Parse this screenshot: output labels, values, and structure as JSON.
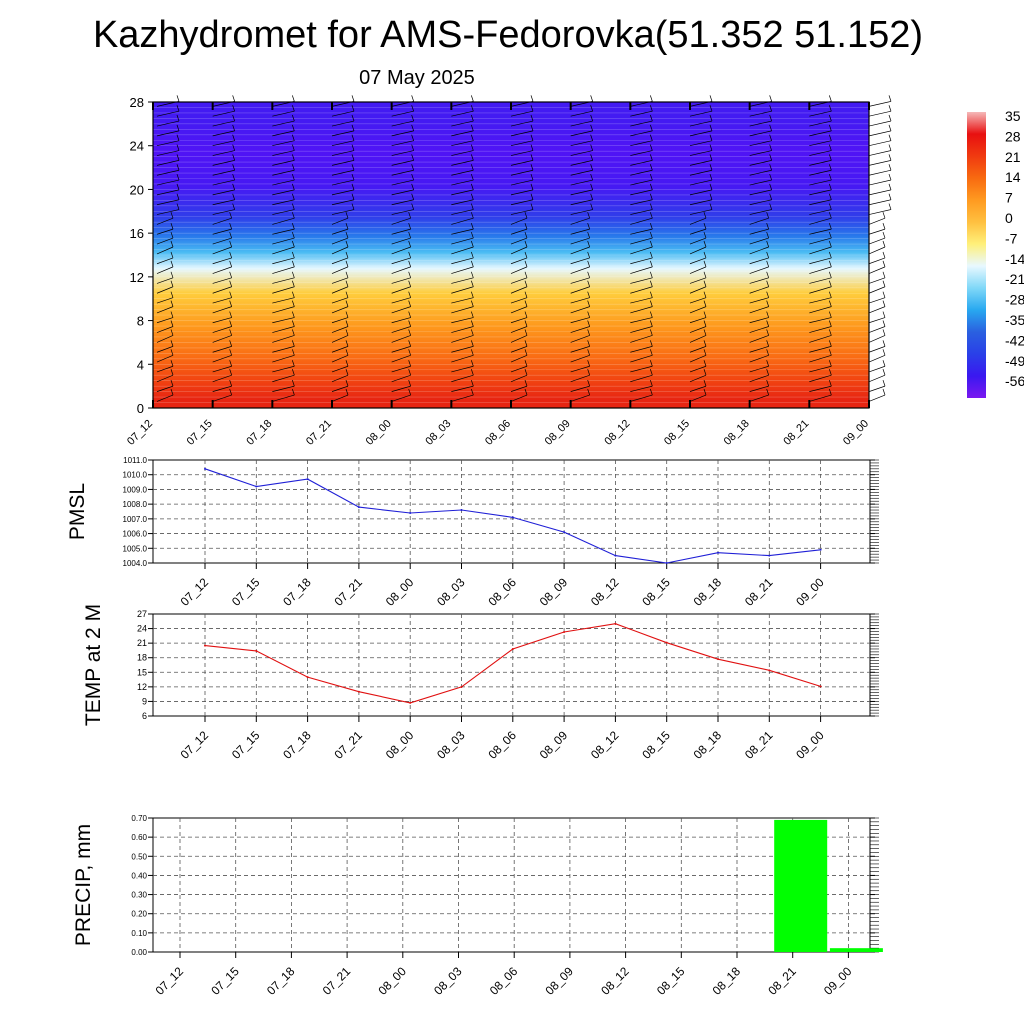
{
  "header": {
    "title": "Kazhydromet for AMS-Fedorovka(51.352 51.152)",
    "subtitle": "07 May 2025"
  },
  "colors": {
    "pmsl_line": "#1f1fd6",
    "temp_line": "#e01010",
    "precip_bar": "#00ff00",
    "grid": "#555555"
  },
  "chart_data": [
    {
      "type": "heatmap",
      "title": "",
      "xlabel": "",
      "ylabel": "",
      "x": [
        "07_12",
        "07_15",
        "07_18",
        "07_21",
        "08_00",
        "08_03",
        "08_06",
        "08_09",
        "08_12",
        "08_15",
        "08_18",
        "08_21",
        "09_00"
      ],
      "y_ticks": [
        0,
        4,
        8,
        12,
        16,
        20,
        24,
        28
      ],
      "ylim": [
        0,
        28
      ],
      "colorbar_labels": [
        "35",
        "28",
        "21",
        "14",
        "7",
        "0",
        "-7",
        "-14",
        "-21",
        "-28",
        "-35",
        "-42",
        "-49",
        "-56"
      ],
      "colorbar_colors": [
        "#f5b8b8",
        "#e81010",
        "#f03a10",
        "#f86a10",
        "#ff9a20",
        "#ffc040",
        "#fff07a",
        "#e8f8ff",
        "#80d8f8",
        "#28a8f0",
        "#2a60e0",
        "#2a40e8",
        "#3a18f0",
        "#7a18f0"
      ],
      "layers": [
        {
          "z": [
            0,
            1.5
          ],
          "value": 25
        },
        {
          "z": [
            1.5,
            3.5
          ],
          "value": 20
        },
        {
          "z": [
            3.5,
            6
          ],
          "value": 14
        },
        {
          "z": [
            6,
            9
          ],
          "value": 8
        },
        {
          "z": [
            9,
            12
          ],
          "value": 0
        },
        {
          "z": [
            12,
            13.5
          ],
          "value": -14
        },
        {
          "z": [
            13.5,
            15
          ],
          "value": -25
        },
        {
          "z": [
            15,
            16.5
          ],
          "value": -35
        },
        {
          "z": [
            16.5,
            18.5
          ],
          "value": -45
        },
        {
          "z": [
            18.5,
            22
          ],
          "value": -53
        },
        {
          "z": [
            22,
            25
          ],
          "value": -56
        },
        {
          "z": [
            25,
            28
          ],
          "value": -52
        }
      ],
      "wind_barbs": true
    },
    {
      "type": "line",
      "ylabel": "PMSL",
      "x": [
        "07_12",
        "07_15",
        "07_18",
        "07_21",
        "08_00",
        "08_03",
        "08_06",
        "08_09",
        "08_12",
        "08_15",
        "08_18",
        "08_21",
        "09_00"
      ],
      "y_ticks": [
        "1004.0",
        "1005.0",
        "1006.0",
        "1007.0",
        "1008.0",
        "1009.0",
        "1010.0",
        "1011.0"
      ],
      "ylim": [
        1004,
        1011
      ],
      "series": [
        {
          "values": [
            1010.4,
            1009.2,
            1009.7,
            1007.8,
            1007.4,
            1007.6,
            1007.1,
            1006.1,
            1004.5,
            1004.0,
            1004.7,
            1004.5,
            1004.9
          ]
        }
      ],
      "grid": true
    },
    {
      "type": "line",
      "ylabel": "TEMP at 2 M",
      "x": [
        "07_12",
        "07_15",
        "07_18",
        "07_21",
        "08_00",
        "08_03",
        "08_06",
        "08_09",
        "08_12",
        "08_15",
        "08_18",
        "08_21",
        "09_00"
      ],
      "y_ticks": [
        "6",
        "9",
        "12",
        "15",
        "18",
        "21",
        "24",
        "27"
      ],
      "ylim": [
        6,
        27
      ],
      "series": [
        {
          "values": [
            20.5,
            19.4,
            14.0,
            11.0,
            8.7,
            12.0,
            19.8,
            23.3,
            25.0,
            21.1,
            17.7,
            15.4,
            12.1
          ]
        }
      ],
      "grid": true
    },
    {
      "type": "bar",
      "ylabel": "PRECIP, mm",
      "x": [
        "07_12",
        "07_15",
        "07_18",
        "07_21",
        "08_00",
        "08_03",
        "08_06",
        "08_09",
        "08_12",
        "08_15",
        "08_18",
        "08_21",
        "09_00"
      ],
      "y_ticks": [
        "0.00",
        "0.10",
        "0.20",
        "0.30",
        "0.40",
        "0.50",
        "0.60",
        "0.70"
      ],
      "ylim": [
        0,
        0.7
      ],
      "values": [
        0,
        0,
        0,
        0,
        0,
        0,
        0,
        0,
        0,
        0,
        0,
        0.69,
        0.02
      ],
      "grid": true
    }
  ]
}
